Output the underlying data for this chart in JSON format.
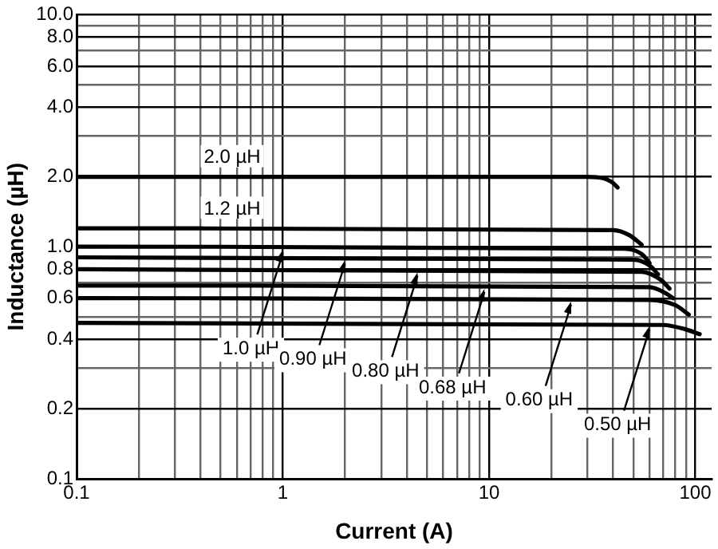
{
  "chart_data": {
    "type": "line",
    "xlabel": "Current (A)",
    "ylabel": "Inductance (µH)",
    "log": "xy",
    "grid": true,
    "marker": "none",
    "legend": false,
    "xlim": [
      0.1,
      120
    ],
    "ylim": [
      0.1,
      10
    ],
    "xticks": [
      0.1,
      {
        "value": 0.2,
        "label": null
      },
      {
        "value": 0.3,
        "label": null
      },
      {
        "value": 0.4,
        "label": null
      },
      {
        "value": 0.5,
        "label": null
      },
      {
        "value": 0.6,
        "label": null
      },
      {
        "value": 0.7,
        "label": null
      },
      {
        "value": 0.8,
        "label": null
      },
      {
        "value": 0.9,
        "label": null
      },
      1,
      {
        "value": 2,
        "label": null
      },
      {
        "value": 3,
        "label": null
      },
      {
        "value": 4,
        "label": null
      },
      {
        "value": 5,
        "label": null
      },
      {
        "value": 6,
        "label": null
      },
      {
        "value": 7,
        "label": null
      },
      {
        "value": 8,
        "label": null
      },
      {
        "value": 9,
        "label": null
      },
      10,
      {
        "value": 20,
        "label": null
      },
      {
        "value": 30,
        "label": null
      },
      {
        "value": 40,
        "label": null
      },
      {
        "value": 50,
        "label": null
      },
      {
        "value": 60,
        "label": null
      },
      {
        "value": 70,
        "label": null
      },
      {
        "value": 80,
        "label": null
      },
      {
        "value": 90,
        "label": null
      },
      100
    ],
    "yticks": [
      0.1,
      0.2,
      {
        "value": 0.3,
        "label": null
      },
      0.4,
      {
        "value": 0.5,
        "label": null
      },
      0.6,
      {
        "value": 0.7,
        "label": null
      },
      0.8,
      {
        "value": 0.9,
        "label": null
      },
      {
        "value": 1,
        "label": "1.0"
      },
      {
        "value": 2,
        "label": "2.0"
      },
      {
        "value": 3,
        "label": null
      },
      {
        "value": 4,
        "label": "4.0"
      },
      {
        "value": 5,
        "label": null
      },
      {
        "value": 6,
        "label": "6.0"
      },
      {
        "value": 7,
        "label": null
      },
      {
        "value": 8,
        "label": "8.0"
      },
      {
        "value": 9,
        "label": null
      },
      {
        "value": 10,
        "label": "10.0"
      }
    ],
    "series": [
      {
        "name": "2.0 µH",
        "color": "#000000",
        "x": [
          0.1,
          30,
          36,
          40,
          42
        ],
        "values": [
          2.0,
          2.0,
          1.97,
          1.88,
          1.8
        ]
      },
      {
        "name": "1.2 µH",
        "color": "#000000",
        "x": [
          0.1,
          40,
          48,
          55
        ],
        "values": [
          1.2,
          1.18,
          1.12,
          1.02
        ]
      },
      {
        "color": "#000000",
        "x": [
          0.1,
          45,
          55,
          60
        ],
        "values": [
          1.0,
          0.98,
          0.93,
          0.85
        ]
      },
      {
        "color": "#000000",
        "x": [
          0.1,
          50,
          60,
          66
        ],
        "values": [
          0.9,
          0.88,
          0.83,
          0.76
        ]
      },
      {
        "color": "#000000",
        "x": [
          0.1,
          55,
          68,
          75
        ],
        "values": [
          0.8,
          0.78,
          0.72,
          0.66
        ]
      },
      {
        "color": "#000000",
        "x": [
          0.1,
          60,
          72,
          78
        ],
        "values": [
          0.68,
          0.67,
          0.63,
          0.6
        ]
      },
      {
        "color": "#000000",
        "x": [
          0.1,
          60,
          80,
          93
        ],
        "values": [
          0.6,
          0.59,
          0.56,
          0.51
        ]
      },
      {
        "color": "#000000",
        "x": [
          0.1,
          70,
          90,
          105
        ],
        "values": [
          0.47,
          0.46,
          0.44,
          0.42
        ]
      }
    ],
    "annotations": [
      {
        "text": "1.0 µH",
        "x": 1.0,
        "y": 1.0
      },
      {
        "text": "0.90 µH",
        "x": 2.0,
        "y": 0.9
      },
      {
        "text": "0.80 µH",
        "x": 4.5,
        "y": 0.8
      },
      {
        "text": "0.68 µH",
        "x": 9.5,
        "y": 0.68
      },
      {
        "text": "0.60 µH",
        "x": 25,
        "y": 0.6
      },
      {
        "text": "0.50 µH",
        "x": 60,
        "y": 0.47
      }
    ]
  }
}
